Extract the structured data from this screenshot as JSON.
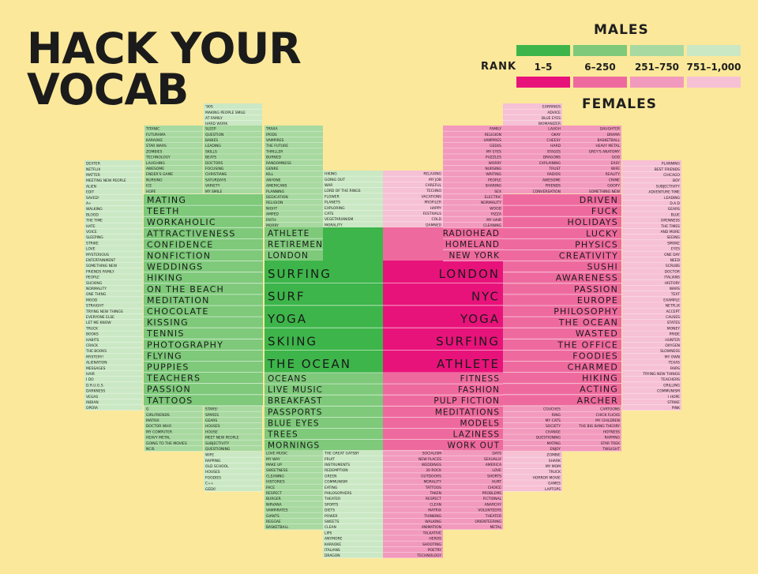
{
  "title": {
    "line1": "HACK YOUR",
    "line2": "VOCAB"
  },
  "legend": {
    "males": "MALES",
    "females": "FEMALES",
    "rank": "RANK",
    "ranges": [
      "1–5",
      "6–250",
      "251–750",
      "751–1,000"
    ],
    "male_colors": [
      "#3db54a",
      "#7ec97a",
      "#a8d9a0",
      "#cbe8c4"
    ],
    "female_colors": [
      "#e8137a",
      "#ee6a9e",
      "#f29abd",
      "#f6c0d5"
    ]
  },
  "chart_data": {
    "type": "table",
    "title": "HACK YOUR VOCAB",
    "description_note": "Words ranked by frequency in male and female online dating profiles; left half males, right half females; color tier by rank",
    "columns": [
      {
        "side": "male",
        "tier": 4,
        "top_tier": 3,
        "words_top": [],
        "words": [
          "DEXTER",
          "NETFLIX",
          "MATTER",
          "MEETING NEW PEOPLE",
          "ALIEN",
          "EDIT",
          "SAVED!",
          "A+",
          "WALKING",
          "BLOOD",
          "THE TIME",
          "HATE",
          "VOICE",
          "SLEEPING",
          "STRIKE",
          "LOVE",
          "MYSTERIOUS",
          "ENTERTAINMENT",
          "SOMETHING NEW",
          "FRIENDS FAMILY",
          "PEOPLE",
          "SUCKING",
          "NORMALITY",
          "ONE THING",
          "MOOD",
          "STRAIGHT",
          "TRYING NEW THINGS",
          "EVERYONE ELSE",
          "LET ME KNOW",
          "TRUCK",
          "BOOKS",
          "HABITS",
          "CRACK",
          "THE BOOKS",
          "MYSTERY!",
          "ALIENATION",
          "MESSAGES",
          "HAIR",
          "I DO",
          "D.R.U.G.S.",
          "DARKNESS",
          "VEGAS",
          "INDIAN",
          "OPERA"
        ]
      },
      {
        "side": "male",
        "tier": 3,
        "words_top": [
          "TITANIC",
          "FUTURAMA",
          "KARAOKE",
          "STAR WARS",
          "ZOMBIES",
          "TECHNOLOGY",
          "LAUGHING",
          "AWESOME",
          "ENDER'S GAME",
          "NURSING",
          "ICE",
          "HOPE"
        ],
        "words_bottom": [
          "G",
          "GIRLFRIENDS",
          "MATRIX",
          "DOCTOR WHO",
          "MY COMPUTER",
          "HEAVY METAL",
          "GOING TO THE MOVIES",
          "NCIS"
        ]
      },
      {
        "side": "male",
        "tier": 2,
        "words_top": [
          "'90S",
          "MAKING PEOPLE SMILE",
          "AT FAMILY",
          "HARD WORK",
          "SLEEP",
          "QUESTION",
          "BABIES",
          "LEADING",
          "SKILLS",
          "BEATS",
          "DOCTORS",
          "FOCUSING",
          "CHRISTIANS",
          "SATURDAYS",
          "VARIETY",
          "MY SMILE"
        ],
        "words_bottom": [
          "STARS!",
          "SPARES",
          "GEARS",
          "HOUSES",
          "HOUSE",
          "MEET NEW PEOPLE",
          "SUBJECTIVITY",
          "QUESTIONING",
          "WIFE",
          "RAPPING",
          "OLD SCHOOL",
          "HOUSES",
          "FOODIES",
          "C++",
          "GEEK!"
        ]
      },
      {
        "side": "male",
        "tier": 2,
        "words_large": [
          "MATING",
          "TEETH",
          "WORKAHOLIC",
          "ATTRACTIVENESS",
          "CONFIDENCE",
          "NONFICTION",
          "WEDDINGS",
          "HIKING",
          "ON THE BEACH",
          "MEDITATION",
          "CHOCOLATE",
          "KISSING",
          "TENNIS",
          "PHOTOGRAPHY",
          "FLYING",
          "PUPPIES",
          "TEACHERS",
          "PASSION",
          "TATTOOS"
        ]
      },
      {
        "side": "male",
        "tier": 2,
        "words_top": [
          "TRIVIA",
          "IPODS",
          "VAMPIRES",
          "THE FUTURE",
          "THRILLER",
          "BURNED",
          "RANDOMNESS",
          "GENRE",
          "KILL",
          "ANYONE",
          "AMERICANS",
          "PLANNING",
          "DEDICATION",
          "RELIGION",
          "NIGHT",
          "AMPED",
          "FAITH",
          "MORRY"
        ],
        "words_large": [
          "ATHLETE",
          "RETIREMENT",
          "LONDON",
          "OCEANS",
          "LIVE MUSIC",
          "BREAKFAST",
          "PASSPORTS",
          "BLUE EYES",
          "TREES",
          "MORNINGS"
        ],
        "words_bottom": [
          "LOVE MUSIC",
          "MY WAY",
          "MAKE UP",
          "SWEETNESS",
          "CLEANING",
          "HISTORIES",
          "FACE",
          "RESPECT",
          "BURGER",
          "NIRVANA",
          "VAMPIRATES",
          "GIANTS",
          "REGGAE",
          "BASKETBALL"
        ]
      },
      {
        "side": "male",
        "tier": 1,
        "words_top5": [
          "SURFING",
          "SURF",
          "YOGA",
          "SKIING",
          "THE OCEAN"
        ]
      },
      {
        "side": "male",
        "tier": 3,
        "words_top": [
          "HIKING",
          "GOING OUT",
          "WAR",
          "LORD OF THE RINGS",
          "FLOWER",
          "PLANETS",
          "EXPLORING",
          "CATS",
          "VEGETARIANISM",
          "MORALITY"
        ],
        "words_bottom": [
          "THE GREAT GATSBY",
          "FRUIT",
          "INSTRUMENTS",
          "REDEMPTION",
          "GREEN",
          "COMMUNISM",
          "EATING",
          "PHILOSOPHERS",
          "THEATER",
          "SPORTS",
          "DIETS",
          "POWER",
          "SWEETS",
          "CLEAN",
          "LIPS",
          "ANYMORE",
          "KARAOKE",
          "ITALIANS",
          "DRAGON"
        ]
      },
      {
        "side": "female",
        "tier": 1,
        "words_top5": [
          "LONDON",
          "NYC",
          "YOGA",
          "SURFING",
          "ATHLETE"
        ]
      },
      {
        "side": "female",
        "tier": 3,
        "words_top": [
          "RELAXING",
          "MY JOB",
          "CAREFUL",
          "TECHNO",
          "VACATIONS",
          "PROFILER",
          "HAPPY",
          "FESTIVALS",
          "COLD",
          "DAMNED"
        ],
        "words_bottom": [
          "SOCIALISM",
          "NEW PLACES",
          "WEDDINGS",
          "30 ROCK",
          "OUTDOORS",
          "MORALITY",
          "TATTOOS",
          "TAKEN",
          "RESPECT",
          "CLEAN",
          "MATRIX",
          "THINKING",
          "WALKING",
          "ANIMATION",
          "TALKATIVE",
          "HEROS",
          "SHOOTING",
          "POETRY",
          "TECHNOLOGY"
        ]
      },
      {
        "side": "female",
        "tier": 2,
        "words_large": [
          "RADIOHEAD",
          "HOMELAND",
          "NEW YORK",
          "FITNESS",
          "FASHION",
          "PULP FICTION",
          "MEDITATIONS",
          "MODELS",
          "LAZINESS",
          "WORK OUT"
        ]
      },
      {
        "side": "female",
        "tier": 3,
        "words_top": [
          "FAMILY",
          "RELIGION",
          "VAMPIRES",
          "GEEKS",
          "MY EYES",
          "PUZZLES",
          "WORRY",
          "NURSING",
          "WRITING",
          "PEOPLE",
          "SHARING",
          "SEX",
          "ELECTRIC",
          "NORMALITY",
          "WOOD",
          "PIZZA",
          "MY HAIR",
          "CLEANING"
        ],
        "words_bottom": [
          "DAYS",
          "SEXUALLY",
          "AMERICA",
          "LOVE",
          "SHORTS",
          "HURT",
          "CHOICE",
          "PROBLEMS",
          "FICTIONAL",
          "ANARCHY",
          "VOLUNTEERS",
          "THEATER",
          "ORIENTEERING",
          "METAL"
        ]
      },
      {
        "side": "female",
        "tier": 2,
        "words_top": [
          "EARRINGS",
          "ADVICE",
          "BLUE EYES",
          "WOMANIZER",
          "LAUGH",
          "OKAY",
          "CHEESY",
          "HARD",
          "STAGES",
          "DRAGONS",
          "EXPLAINING",
          "TRUST",
          "RADIOS",
          "AWESOME",
          "FRIENDS",
          "CONVERSATION"
        ],
        "words_bottom": [
          "COUCHES",
          "RING",
          "MY CATS",
          "SOCIETY",
          "CHANGE",
          "QUESTIONING",
          "MATING",
          "ENJOY",
          "ZOMBIE",
          "SHARK",
          "MY MOM",
          "TRUCK",
          "HORROR MOVIE",
          "GAMES",
          "LAPTOPS"
        ]
      },
      {
        "side": "female",
        "tier": 2,
        "words_top": [
          "DAUGHTER",
          "DRAMA",
          "BASKETBALL",
          "HEAVY METAL",
          "GREY'S ANATOMY",
          "GOD",
          "EASY",
          "WIFE",
          "REALITY",
          "CRIME",
          "GOOFY",
          "SOMETHING NEW"
        ],
        "words_large": [
          "DRIVEN",
          "FUCK",
          "HOLIDAYS",
          "LUCKY",
          "PHYSICS",
          "CREATIVITY",
          "SUSHI",
          "AWARENESS",
          "PASSION",
          "EUROPE",
          "PHILOSOPHY",
          "THE OCEAN",
          "WASTED",
          "THE OFFICE",
          "FOODIES",
          "CHARMED",
          "HIKING",
          "ACTING",
          "ARCHER"
        ],
        "words_bottom": [
          "CARTOONS",
          "CHICK FLICKS",
          "MY CHILDREN",
          "THE BIG BANG THEORY",
          "HOTNESS",
          "RAPPING",
          "STAR TREK",
          "TWILIGHT"
        ]
      },
      {
        "side": "female",
        "tier": 4,
        "words": [
          "PLANNING",
          "BEST FRIENDS",
          "CHICAGO",
          "BOY",
          "SUBJECTIVITY",
          "ADVENTURE TIME",
          "LEADING",
          "D.A.D",
          "GEARS",
          "BLUE",
          "OPENNESS",
          "THE TIMES",
          "AND MORE",
          "SEEING",
          "SMOKE",
          "EYES",
          "ONE DAY",
          "NEED",
          "SCRUBS",
          "DOCTOR",
          "ITALIANS",
          "HISTORY",
          "WARS",
          "TEXT",
          "EXAMPLE",
          "NETFLIX",
          "ACCEPT",
          "CAUSES",
          "STATES",
          "MONEY",
          "PRIDE",
          "HUNTER",
          "OXYGEN",
          "SLOWNESS",
          "MY OWN",
          "TEXAS",
          "FAIRS",
          "TRYING NEW THINGS",
          "TEACHERS",
          "GRILLING",
          "COMMUNISM",
          "I HOPE",
          "STRIKE",
          "PINK"
        ]
      }
    ]
  }
}
